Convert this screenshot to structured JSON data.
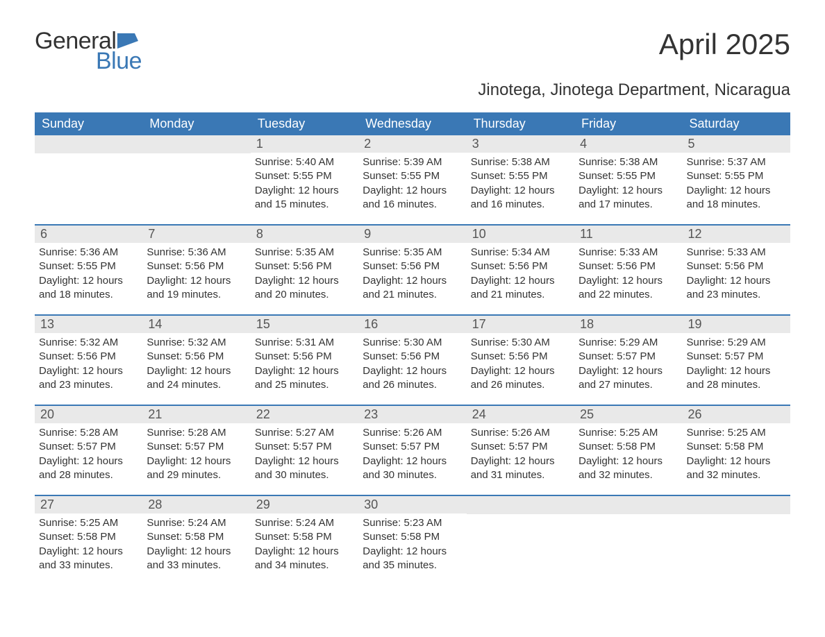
{
  "logo": {
    "text_general": "General",
    "text_blue": "Blue",
    "flag_color": "#3a78b5"
  },
  "title": "April 2025",
  "subtitle": "Jinotega, Jinotega Department, Nicaragua",
  "weekdays": [
    "Sunday",
    "Monday",
    "Tuesday",
    "Wednesday",
    "Thursday",
    "Friday",
    "Saturday"
  ],
  "style": {
    "header_bg": "#3a78b5",
    "header_text": "#ffffff",
    "daynum_bg": "#e9e9e9",
    "daynum_text": "#555555",
    "body_text": "#333333",
    "week_border": "#3a78b5",
    "background": "#ffffff",
    "title_fontsize": 42,
    "subtitle_fontsize": 24,
    "weekday_fontsize": 18,
    "daynum_fontsize": 18,
    "content_fontsize": 15,
    "columns": 7,
    "rows": 5
  },
  "weeks": [
    [
      {
        "num": "",
        "sunrise": "",
        "sunset": "",
        "daylight": ""
      },
      {
        "num": "",
        "sunrise": "",
        "sunset": "",
        "daylight": ""
      },
      {
        "num": "1",
        "sunrise": "Sunrise: 5:40 AM",
        "sunset": "Sunset: 5:55 PM",
        "daylight": "Daylight: 12 hours and 15 minutes."
      },
      {
        "num": "2",
        "sunrise": "Sunrise: 5:39 AM",
        "sunset": "Sunset: 5:55 PM",
        "daylight": "Daylight: 12 hours and 16 minutes."
      },
      {
        "num": "3",
        "sunrise": "Sunrise: 5:38 AM",
        "sunset": "Sunset: 5:55 PM",
        "daylight": "Daylight: 12 hours and 16 minutes."
      },
      {
        "num": "4",
        "sunrise": "Sunrise: 5:38 AM",
        "sunset": "Sunset: 5:55 PM",
        "daylight": "Daylight: 12 hours and 17 minutes."
      },
      {
        "num": "5",
        "sunrise": "Sunrise: 5:37 AM",
        "sunset": "Sunset: 5:55 PM",
        "daylight": "Daylight: 12 hours and 18 minutes."
      }
    ],
    [
      {
        "num": "6",
        "sunrise": "Sunrise: 5:36 AM",
        "sunset": "Sunset: 5:55 PM",
        "daylight": "Daylight: 12 hours and 18 minutes."
      },
      {
        "num": "7",
        "sunrise": "Sunrise: 5:36 AM",
        "sunset": "Sunset: 5:56 PM",
        "daylight": "Daylight: 12 hours and 19 minutes."
      },
      {
        "num": "8",
        "sunrise": "Sunrise: 5:35 AM",
        "sunset": "Sunset: 5:56 PM",
        "daylight": "Daylight: 12 hours and 20 minutes."
      },
      {
        "num": "9",
        "sunrise": "Sunrise: 5:35 AM",
        "sunset": "Sunset: 5:56 PM",
        "daylight": "Daylight: 12 hours and 21 minutes."
      },
      {
        "num": "10",
        "sunrise": "Sunrise: 5:34 AM",
        "sunset": "Sunset: 5:56 PM",
        "daylight": "Daylight: 12 hours and 21 minutes."
      },
      {
        "num": "11",
        "sunrise": "Sunrise: 5:33 AM",
        "sunset": "Sunset: 5:56 PM",
        "daylight": "Daylight: 12 hours and 22 minutes."
      },
      {
        "num": "12",
        "sunrise": "Sunrise: 5:33 AM",
        "sunset": "Sunset: 5:56 PM",
        "daylight": "Daylight: 12 hours and 23 minutes."
      }
    ],
    [
      {
        "num": "13",
        "sunrise": "Sunrise: 5:32 AM",
        "sunset": "Sunset: 5:56 PM",
        "daylight": "Daylight: 12 hours and 23 minutes."
      },
      {
        "num": "14",
        "sunrise": "Sunrise: 5:32 AM",
        "sunset": "Sunset: 5:56 PM",
        "daylight": "Daylight: 12 hours and 24 minutes."
      },
      {
        "num": "15",
        "sunrise": "Sunrise: 5:31 AM",
        "sunset": "Sunset: 5:56 PM",
        "daylight": "Daylight: 12 hours and 25 minutes."
      },
      {
        "num": "16",
        "sunrise": "Sunrise: 5:30 AM",
        "sunset": "Sunset: 5:56 PM",
        "daylight": "Daylight: 12 hours and 26 minutes."
      },
      {
        "num": "17",
        "sunrise": "Sunrise: 5:30 AM",
        "sunset": "Sunset: 5:56 PM",
        "daylight": "Daylight: 12 hours and 26 minutes."
      },
      {
        "num": "18",
        "sunrise": "Sunrise: 5:29 AM",
        "sunset": "Sunset: 5:57 PM",
        "daylight": "Daylight: 12 hours and 27 minutes."
      },
      {
        "num": "19",
        "sunrise": "Sunrise: 5:29 AM",
        "sunset": "Sunset: 5:57 PM",
        "daylight": "Daylight: 12 hours and 28 minutes."
      }
    ],
    [
      {
        "num": "20",
        "sunrise": "Sunrise: 5:28 AM",
        "sunset": "Sunset: 5:57 PM",
        "daylight": "Daylight: 12 hours and 28 minutes."
      },
      {
        "num": "21",
        "sunrise": "Sunrise: 5:28 AM",
        "sunset": "Sunset: 5:57 PM",
        "daylight": "Daylight: 12 hours and 29 minutes."
      },
      {
        "num": "22",
        "sunrise": "Sunrise: 5:27 AM",
        "sunset": "Sunset: 5:57 PM",
        "daylight": "Daylight: 12 hours and 30 minutes."
      },
      {
        "num": "23",
        "sunrise": "Sunrise: 5:26 AM",
        "sunset": "Sunset: 5:57 PM",
        "daylight": "Daylight: 12 hours and 30 minutes."
      },
      {
        "num": "24",
        "sunrise": "Sunrise: 5:26 AM",
        "sunset": "Sunset: 5:57 PM",
        "daylight": "Daylight: 12 hours and 31 minutes."
      },
      {
        "num": "25",
        "sunrise": "Sunrise: 5:25 AM",
        "sunset": "Sunset: 5:58 PM",
        "daylight": "Daylight: 12 hours and 32 minutes."
      },
      {
        "num": "26",
        "sunrise": "Sunrise: 5:25 AM",
        "sunset": "Sunset: 5:58 PM",
        "daylight": "Daylight: 12 hours and 32 minutes."
      }
    ],
    [
      {
        "num": "27",
        "sunrise": "Sunrise: 5:25 AM",
        "sunset": "Sunset: 5:58 PM",
        "daylight": "Daylight: 12 hours and 33 minutes."
      },
      {
        "num": "28",
        "sunrise": "Sunrise: 5:24 AM",
        "sunset": "Sunset: 5:58 PM",
        "daylight": "Daylight: 12 hours and 33 minutes."
      },
      {
        "num": "29",
        "sunrise": "Sunrise: 5:24 AM",
        "sunset": "Sunset: 5:58 PM",
        "daylight": "Daylight: 12 hours and 34 minutes."
      },
      {
        "num": "30",
        "sunrise": "Sunrise: 5:23 AM",
        "sunset": "Sunset: 5:58 PM",
        "daylight": "Daylight: 12 hours and 35 minutes."
      },
      {
        "num": "",
        "sunrise": "",
        "sunset": "",
        "daylight": ""
      },
      {
        "num": "",
        "sunrise": "",
        "sunset": "",
        "daylight": ""
      },
      {
        "num": "",
        "sunrise": "",
        "sunset": "",
        "daylight": ""
      }
    ]
  ]
}
